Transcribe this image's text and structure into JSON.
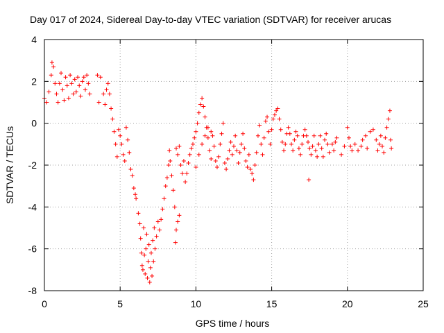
{
  "chart_data": {
    "type": "scatter",
    "title": "Day 017 of 2024, Sidereal Day-to-day VTEC variation (SDTVAR) for receiver arucas",
    "xlabel": "GPS time / hours",
    "ylabel": "SDTVAR / TECUs",
    "xlim": [
      0,
      25
    ],
    "ylim": [
      -8,
      4
    ],
    "xticks": [
      0,
      5,
      10,
      15,
      20,
      25
    ],
    "yticks": [
      -8,
      -6,
      -4,
      -2,
      0,
      2,
      4
    ],
    "xtick_labels": [
      "0",
      "5",
      "10",
      "15",
      "20",
      "25"
    ],
    "ytick_labels": [
      "-8",
      "-6",
      "-4",
      "-2",
      "0",
      "2",
      "4"
    ],
    "grid": true,
    "marker": "+",
    "color": "#ff0000",
    "series": [
      {
        "name": "SDTVAR",
        "points": [
          [
            0.0,
            1.2
          ],
          [
            0.15,
            1.0
          ],
          [
            0.3,
            1.5
          ],
          [
            0.45,
            2.3
          ],
          [
            0.5,
            2.9
          ],
          [
            0.6,
            2.7
          ],
          [
            0.7,
            1.9
          ],
          [
            0.8,
            1.4
          ],
          [
            0.9,
            1.0
          ],
          [
            1.0,
            1.9
          ],
          [
            1.1,
            2.4
          ],
          [
            1.2,
            1.6
          ],
          [
            1.3,
            1.1
          ],
          [
            1.4,
            2.2
          ],
          [
            1.5,
            1.8
          ],
          [
            1.6,
            1.2
          ],
          [
            1.7,
            2.3
          ],
          [
            1.8,
            1.9
          ],
          [
            1.9,
            1.4
          ],
          [
            2.0,
            2.1
          ],
          [
            2.1,
            1.5
          ],
          [
            2.2,
            2.2
          ],
          [
            2.3,
            1.8
          ],
          [
            2.4,
            1.3
          ],
          [
            2.5,
            2.0
          ],
          [
            2.6,
            2.2
          ],
          [
            2.7,
            1.6
          ],
          [
            2.8,
            2.3
          ],
          [
            2.9,
            1.9
          ],
          [
            3.0,
            1.4
          ],
          [
            3.5,
            2.3
          ],
          [
            3.6,
            1.0
          ],
          [
            3.7,
            2.2
          ],
          [
            3.9,
            1.4
          ],
          [
            4.0,
            0.9
          ],
          [
            4.1,
            1.6
          ],
          [
            4.2,
            1.9
          ],
          [
            4.3,
            1.4
          ],
          [
            4.4,
            0.7
          ],
          [
            4.5,
            0.2
          ],
          [
            4.6,
            -0.4
          ],
          [
            4.7,
            -1.0
          ],
          [
            4.8,
            -1.6
          ],
          [
            4.9,
            -0.3
          ],
          [
            5.0,
            -0.6
          ],
          [
            5.1,
            -1.0
          ],
          [
            5.2,
            -1.5
          ],
          [
            5.3,
            -1.8
          ],
          [
            5.4,
            -0.2
          ],
          [
            5.5,
            -0.8
          ],
          [
            5.6,
            -1.4
          ],
          [
            5.7,
            -2.2
          ],
          [
            5.8,
            -2.5
          ],
          [
            5.9,
            -3.1
          ],
          [
            6.0,
            -3.4
          ],
          [
            6.05,
            -3.6
          ],
          [
            6.2,
            -4.3
          ],
          [
            6.3,
            -4.8
          ],
          [
            6.35,
            -5.5
          ],
          [
            6.4,
            -6.2
          ],
          [
            6.45,
            -6.8
          ],
          [
            6.5,
            -7.0
          ],
          [
            6.55,
            -5.0
          ],
          [
            6.6,
            -6.3
          ],
          [
            6.65,
            -7.2
          ],
          [
            6.7,
            -6.0
          ],
          [
            6.75,
            -5.3
          ],
          [
            6.8,
            -7.4
          ],
          [
            6.85,
            -6.6
          ],
          [
            6.9,
            -5.8
          ],
          [
            6.95,
            -7.6
          ],
          [
            7.0,
            -6.9
          ],
          [
            7.05,
            -6.2
          ],
          [
            7.1,
            -7.3
          ],
          [
            7.15,
            -5.6
          ],
          [
            7.2,
            -6.6
          ],
          [
            7.25,
            -5.0
          ],
          [
            7.3,
            -6.0
          ],
          [
            7.4,
            -5.4
          ],
          [
            7.5,
            -4.7
          ],
          [
            7.6,
            -5.1
          ],
          [
            7.7,
            -4.6
          ],
          [
            7.8,
            -4.1
          ],
          [
            7.9,
            -3.6
          ],
          [
            8.0,
            -3.0
          ],
          [
            8.1,
            -2.6
          ],
          [
            8.2,
            -2.0
          ],
          [
            8.25,
            -1.3
          ],
          [
            8.3,
            -1.8
          ],
          [
            8.4,
            -2.5
          ],
          [
            8.5,
            -3.2
          ],
          [
            8.6,
            -4.0
          ],
          [
            8.65,
            -5.7
          ],
          [
            8.7,
            -5.1
          ],
          [
            8.8,
            -4.7
          ],
          [
            8.9,
            -4.4
          ],
          [
            8.7,
            -1.2
          ],
          [
            8.8,
            -1.5
          ],
          [
            8.9,
            -1.1
          ],
          [
            9.0,
            -2.0
          ],
          [
            9.1,
            -2.4
          ],
          [
            9.2,
            -1.8
          ],
          [
            9.3,
            -2.8
          ],
          [
            9.4,
            -2.4
          ],
          [
            9.5,
            -1.9
          ],
          [
            9.6,
            -1.5
          ],
          [
            9.7,
            -1.2
          ],
          [
            9.8,
            -1.0
          ],
          [
            9.9,
            -0.7
          ],
          [
            10.0,
            -0.4
          ],
          [
            10.1,
            0.0
          ],
          [
            10.2,
            0.5
          ],
          [
            10.3,
            0.9
          ],
          [
            10.4,
            1.2
          ],
          [
            10.5,
            0.8
          ],
          [
            10.6,
            0.3
          ],
          [
            10.7,
            -0.2
          ],
          [
            10.8,
            -0.7
          ],
          [
            10.9,
            -1.3
          ],
          [
            11.0,
            -1.7
          ],
          [
            10.0,
            -2.1
          ],
          [
            10.2,
            -1.5
          ],
          [
            10.4,
            -1.0
          ],
          [
            10.6,
            -0.6
          ],
          [
            10.8,
            -0.2
          ],
          [
            11.0,
            -0.4
          ],
          [
            11.1,
            -0.6
          ],
          [
            11.2,
            -1.1
          ],
          [
            11.3,
            -1.8
          ],
          [
            11.4,
            -2.1
          ],
          [
            11.5,
            -1.6
          ],
          [
            11.6,
            -1.0
          ],
          [
            11.7,
            -0.5
          ],
          [
            11.8,
            0.0
          ],
          [
            11.9,
            -1.9
          ],
          [
            12.0,
            -2.2
          ],
          [
            12.1,
            -1.7
          ],
          [
            12.2,
            -1.3
          ],
          [
            12.3,
            -0.9
          ],
          [
            12.4,
            -1.5
          ],
          [
            12.5,
            -1.1
          ],
          [
            12.6,
            -0.6
          ],
          [
            12.7,
            -1.3
          ],
          [
            12.8,
            -1.9
          ],
          [
            12.9,
            -1.4
          ],
          [
            13.0,
            -1.0
          ],
          [
            13.1,
            -0.5
          ],
          [
            13.2,
            -1.2
          ],
          [
            13.3,
            -1.8
          ],
          [
            13.4,
            -2.1
          ],
          [
            13.5,
            -1.5
          ],
          [
            13.6,
            -2.2
          ],
          [
            13.7,
            -2.4
          ],
          [
            13.8,
            -2.7
          ],
          [
            13.9,
            -2.0
          ],
          [
            14.0,
            -1.4
          ],
          [
            14.1,
            -0.6
          ],
          [
            14.2,
            -0.1
          ],
          [
            14.3,
            -1.0
          ],
          [
            14.4,
            -1.5
          ],
          [
            14.5,
            -0.7
          ],
          [
            14.6,
            0.1
          ],
          [
            14.7,
            0.3
          ],
          [
            14.8,
            -0.4
          ],
          [
            14.9,
            -1.0
          ],
          [
            15.0,
            -0.3
          ],
          [
            15.1,
            0.2
          ],
          [
            15.2,
            0.4
          ],
          [
            15.3,
            0.6
          ],
          [
            15.4,
            0.7
          ],
          [
            15.5,
            0.2
          ],
          [
            15.6,
            -0.3
          ],
          [
            15.7,
            -0.9
          ],
          [
            15.8,
            -1.3
          ],
          [
            15.9,
            -1.0
          ],
          [
            16.0,
            -0.5
          ],
          [
            16.1,
            -0.2
          ],
          [
            16.2,
            -0.5
          ],
          [
            16.3,
            -1.0
          ],
          [
            16.4,
            -1.3
          ],
          [
            16.5,
            -0.8
          ],
          [
            16.6,
            -0.4
          ],
          [
            16.7,
            -0.6
          ],
          [
            16.8,
            -1.2
          ],
          [
            16.9,
            -1.5
          ],
          [
            17.0,
            -1.0
          ],
          [
            17.1,
            -0.6
          ],
          [
            17.2,
            -0.3
          ],
          [
            17.3,
            -0.6
          ],
          [
            17.4,
            -0.9
          ],
          [
            17.5,
            -1.2
          ],
          [
            17.6,
            -1.5
          ],
          [
            17.45,
            -2.7
          ],
          [
            17.7,
            -1.1
          ],
          [
            17.8,
            -0.6
          ],
          [
            17.9,
            -1.3
          ],
          [
            18.0,
            -1.6
          ],
          [
            18.1,
            -1.0
          ],
          [
            18.2,
            -0.6
          ],
          [
            18.3,
            -1.2
          ],
          [
            18.4,
            -1.6
          ],
          [
            18.5,
            -0.8
          ],
          [
            18.6,
            -0.5
          ],
          [
            18.7,
            -1.0
          ],
          [
            18.8,
            -1.4
          ],
          [
            19.0,
            -1.0
          ],
          [
            19.1,
            -1.3
          ],
          [
            19.2,
            -0.9
          ],
          [
            19.3,
            -0.7
          ],
          [
            19.6,
            -1.5
          ],
          [
            19.8,
            -1.1
          ],
          [
            20.0,
            -0.2
          ],
          [
            20.1,
            -0.7
          ],
          [
            20.2,
            -1.1
          ],
          [
            20.3,
            -1.3
          ],
          [
            20.5,
            -1.0
          ],
          [
            20.7,
            -1.3
          ],
          [
            20.9,
            -1.1
          ],
          [
            21.0,
            -0.8
          ],
          [
            21.2,
            -0.6
          ],
          [
            21.3,
            -1.2
          ],
          [
            21.5,
            -0.4
          ],
          [
            21.7,
            -0.3
          ],
          [
            21.9,
            -0.8
          ],
          [
            22.0,
            -1.3
          ],
          [
            22.1,
            -1.0
          ],
          [
            22.2,
            -0.6
          ],
          [
            22.3,
            -1.1
          ],
          [
            22.4,
            -1.4
          ],
          [
            22.5,
            -0.7
          ],
          [
            22.6,
            -0.2
          ],
          [
            22.7,
            0.2
          ],
          [
            22.8,
            0.6
          ],
          [
            22.85,
            -0.8
          ],
          [
            22.9,
            -1.2
          ]
        ]
      }
    ]
  }
}
